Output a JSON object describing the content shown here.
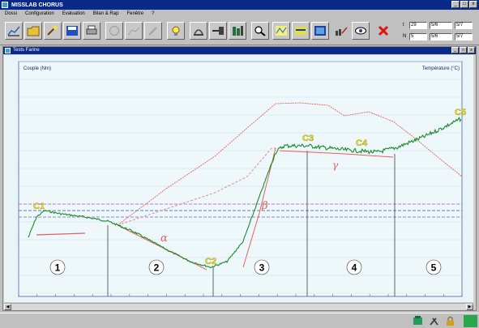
{
  "app": {
    "title": "MISSLAB CHORUS"
  },
  "menu": [
    "Dossi",
    "Configuration",
    "Evaluation",
    "Bilan & Rap",
    "Fenêtre",
    "?"
  ],
  "toolbar": {
    "buttons": [
      "chart-icon",
      "folder-icon",
      "wizard-icon",
      "save-icon",
      "print-icon",
      "record-icon",
      "chart-zoom-icon",
      "pen-icon",
      "lamp-icon",
      "play-icon",
      "arrow-icon",
      "columns-icon",
      "magnify-icon",
      "scale-icon",
      "multi-icon",
      "display-icon",
      "export-icon",
      "eye-icon",
      "cancel-icon"
    ],
    "readouts": [
      {
        "label": "t",
        "value1": "29",
        "value2": "5/6",
        "value3": "5/7"
      },
      {
        "label": "N",
        "value1": "5",
        "value2": "5/6",
        "value3": "5/7"
      }
    ]
  },
  "child": {
    "title": "Tests Farine"
  },
  "chart_data": {
    "type": "line",
    "ylabel_left": "Couple (Nm)",
    "ylabel_right": "Température (°C)",
    "curves": [
      "torque",
      "temperature"
    ],
    "points": [
      {
        "label": "C1",
        "x": 4.5,
        "y": 2.0
      },
      {
        "label": "C2",
        "x": 16.5,
        "y": 1.07
      },
      {
        "label": "C3",
        "x": 25.0,
        "y": 2.37
      },
      {
        "label": "C4",
        "x": 31.0,
        "y": 2.3
      },
      {
        "label": "C5",
        "x": 43.0,
        "y": 2.85
      }
    ],
    "greek": [
      "α",
      "β",
      "γ"
    ],
    "phases": [
      "1",
      "2",
      "3",
      "4",
      "5"
    ],
    "colors": {
      "torque": "#1a8a2a",
      "temperature": "#e06060",
      "marker_label": "#e8e020",
      "bg": "#e8f4f8"
    }
  },
  "status": [
    "network-icon",
    "tools-icon",
    "lock-icon"
  ]
}
